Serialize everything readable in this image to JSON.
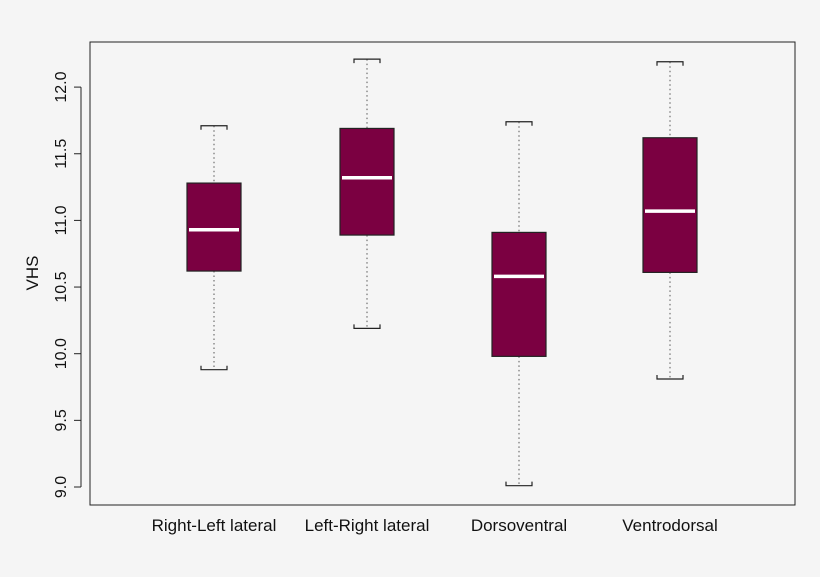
{
  "chart_data": {
    "type": "box",
    "title": "",
    "xlabel": "",
    "ylabel": "VHS",
    "ylim": [
      8.95,
      12.25
    ],
    "yticks": [
      9.0,
      9.5,
      10.0,
      10.5,
      11.0,
      11.5,
      12.0
    ],
    "ytick_labels": [
      "9.0",
      "9.5",
      "10.0",
      "10.5",
      "11.0",
      "11.5",
      "12.0"
    ],
    "grid": false,
    "legend": "none",
    "box_color": "#7b0041",
    "median_color": "#ffffff",
    "categories": [
      "Right-Left lateral",
      "Left-Right lateral",
      "Dorsoventral",
      "Ventrodorsal"
    ],
    "series": [
      {
        "category": "Right-Left lateral",
        "min": 9.88,
        "q1": 10.62,
        "median": 10.93,
        "q3": 11.28,
        "max": 11.71
      },
      {
        "category": "Left-Right lateral",
        "min": 10.19,
        "q1": 10.89,
        "median": 11.32,
        "q3": 11.69,
        "max": 12.21
      },
      {
        "category": "Dorsoventral",
        "min": 9.01,
        "q1": 9.98,
        "median": 10.58,
        "q3": 10.91,
        "max": 11.74
      },
      {
        "category": "Ventrodorsal",
        "min": 9.81,
        "q1": 10.61,
        "median": 11.07,
        "q3": 11.62,
        "max": 12.19
      }
    ]
  }
}
